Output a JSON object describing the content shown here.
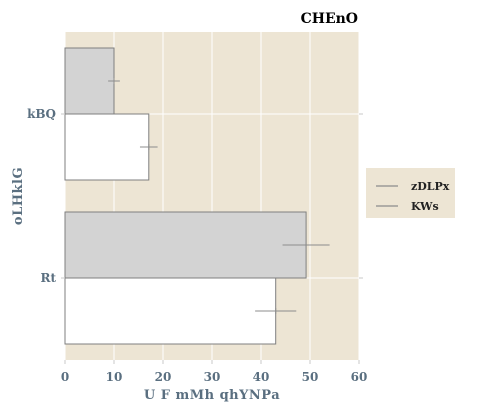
{
  "chart_data": {
    "type": "bar",
    "orientation": "horizontal",
    "title": "CHEnO",
    "xlabel": "U F mMh qhYNPa",
    "ylabel": "oLHklG",
    "categories": [
      "kBQ",
      "Rt"
    ],
    "xlim": [
      0,
      60
    ],
    "xticks": [
      0,
      10,
      20,
      30,
      40,
      50,
      60
    ],
    "grid": true,
    "legend_position": "right",
    "series": [
      {
        "name": "zDLPx",
        "values": [
          10,
          49.2
        ],
        "errors": [
          1.2,
          4.8
        ],
        "color": "#d3d3d3"
      },
      {
        "name": "KWs",
        "values": [
          17.1,
          43.0
        ],
        "errors": [
          1.8,
          4.2
        ],
        "color": "#ffffff"
      }
    ]
  },
  "colors": {
    "plot_background": "#ede5d4",
    "grid": "#ffffff",
    "bar_edge": "#7f7f7f",
    "error_bar": "#8c8c8c",
    "legend_background": "#ede5d4"
  }
}
